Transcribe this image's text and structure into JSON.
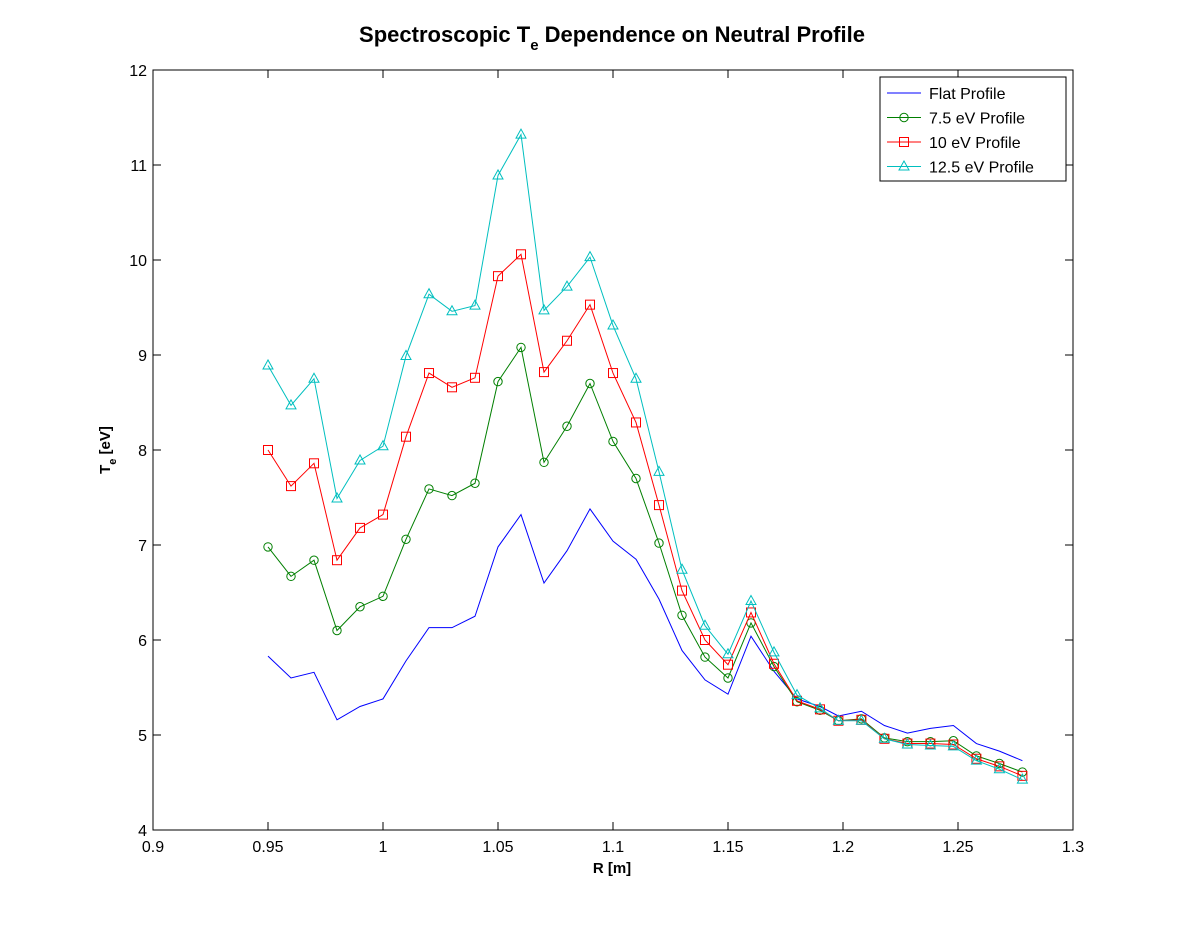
{
  "chart_data": {
    "type": "line",
    "title": "Spectroscopic T",
    "title_sub": "e",
    "title_rest": " Dependence on Neutral Profile",
    "xlabel": "R [m]",
    "ylabel": "T",
    "ylabel_sub": "e",
    "ylabel_rest": " [eV]",
    "xlim": [
      0.9,
      1.3
    ],
    "ylim": [
      4,
      12
    ],
    "xticks": [
      0.9,
      0.95,
      1.0,
      1.05,
      1.1,
      1.15,
      1.2,
      1.25,
      1.3
    ],
    "xtick_labels": [
      "0.9",
      "0.95",
      "1",
      "1.05",
      "1.1",
      "1.15",
      "1.2",
      "1.25",
      "1.3"
    ],
    "yticks": [
      4,
      5,
      6,
      7,
      8,
      9,
      10,
      11,
      12
    ],
    "ytick_labels": [
      "4",
      "5",
      "6",
      "7",
      "8",
      "9",
      "10",
      "11",
      "12"
    ],
    "grid": false,
    "legend_position": "top-right",
    "x": [
      0.95,
      0.96,
      0.97,
      0.98,
      0.99,
      1.0,
      1.01,
      1.02,
      1.03,
      1.04,
      1.05,
      1.06,
      1.07,
      1.08,
      1.09,
      1.1,
      1.11,
      1.12,
      1.13,
      1.14,
      1.15,
      1.16,
      1.17,
      1.18,
      1.19,
      1.198,
      1.208,
      1.218,
      1.228,
      1.238,
      1.248,
      1.258,
      1.268,
      1.278
    ],
    "series": [
      {
        "name": "Flat Profile",
        "color": "#0000ff",
        "marker": "none",
        "values": [
          5.83,
          5.6,
          5.66,
          5.16,
          5.3,
          5.38,
          5.78,
          6.13,
          6.13,
          6.25,
          6.98,
          7.32,
          6.6,
          6.94,
          7.38,
          7.04,
          6.85,
          6.43,
          5.89,
          5.58,
          5.43,
          6.04,
          5.67,
          5.38,
          5.3,
          5.2,
          5.25,
          5.1,
          5.02,
          5.07,
          5.1,
          4.91,
          4.83,
          4.73
        ]
      },
      {
        "name": "7.5 eV Profile",
        "color": "#007f00",
        "marker": "circle",
        "values": [
          6.98,
          6.67,
          6.84,
          6.1,
          6.35,
          6.46,
          7.06,
          7.59,
          7.52,
          7.65,
          8.72,
          9.08,
          7.87,
          8.25,
          8.7,
          8.09,
          7.7,
          7.02,
          6.26,
          5.82,
          5.6,
          6.18,
          5.72,
          5.35,
          5.26,
          5.15,
          5.17,
          4.97,
          4.93,
          4.93,
          4.94,
          4.78,
          4.7,
          4.61
        ]
      },
      {
        "name": "10 eV Profile",
        "color": "#ff0000",
        "marker": "square",
        "values": [
          8.0,
          7.62,
          7.86,
          6.84,
          7.18,
          7.32,
          8.14,
          8.81,
          8.66,
          8.76,
          9.83,
          10.06,
          8.82,
          9.15,
          9.53,
          8.81,
          8.29,
          7.42,
          6.52,
          6.0,
          5.74,
          6.29,
          5.75,
          5.36,
          5.27,
          5.15,
          5.16,
          4.96,
          4.91,
          4.91,
          4.9,
          4.75,
          4.67,
          4.57
        ]
      },
      {
        "name": "12.5 eV Profile",
        "color": "#00bfbf",
        "marker": "triangle",
        "values": [
          8.89,
          8.47,
          8.75,
          7.49,
          7.89,
          8.04,
          8.99,
          9.64,
          9.46,
          9.52,
          10.89,
          11.32,
          9.47,
          9.72,
          10.03,
          9.31,
          8.75,
          7.77,
          6.74,
          6.15,
          5.85,
          6.41,
          5.87,
          5.42,
          5.28,
          5.15,
          5.15,
          4.96,
          4.9,
          4.89,
          4.88,
          4.73,
          4.64,
          4.53
        ]
      }
    ]
  }
}
